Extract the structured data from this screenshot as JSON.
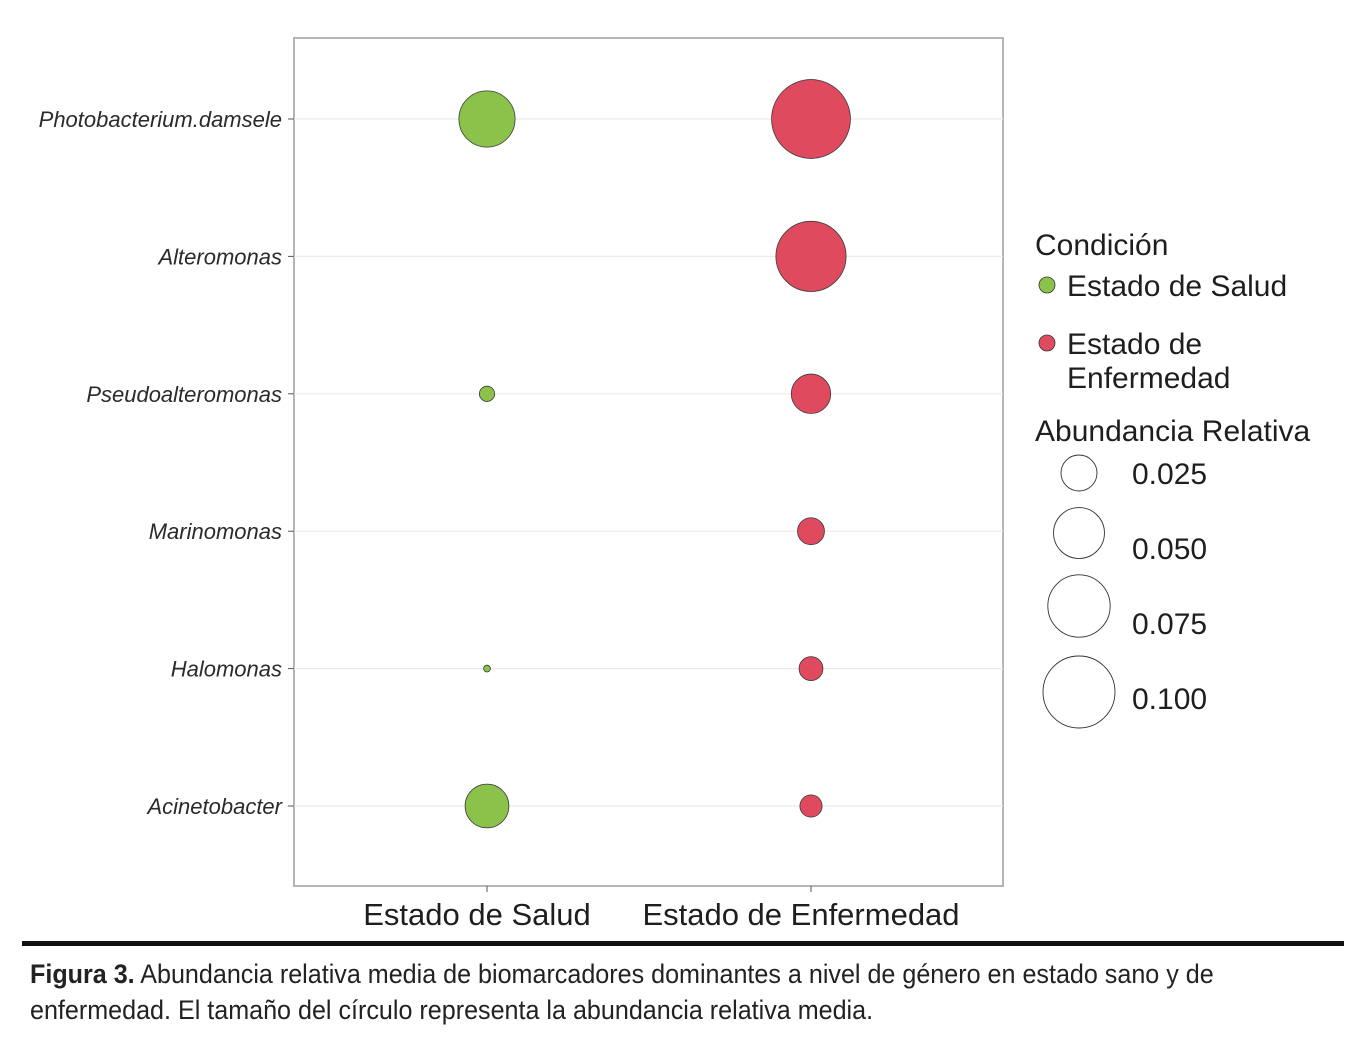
{
  "chart_data": {
    "type": "scatter",
    "categories_y": [
      "Photobacterium.damsele",
      "Alteromonas",
      "Pseudoalteromonas",
      "Marinomonas",
      "Halomonas",
      "Acinetobacter"
    ],
    "categories_x": [
      "Estado de Salud",
      "Estado de Enfermedad"
    ],
    "series": [
      {
        "name": "Estado de Salud",
        "color": "#8bc34a",
        "values": [
          0.061,
          0,
          0.0045,
          0,
          0.0009,
          0.037
        ]
      },
      {
        "name": "Estado de Enfermedad",
        "color": "#e04a5f",
        "values": [
          0.12,
          0.095,
          0.03,
          0.014,
          0.011,
          0.0095
        ]
      }
    ],
    "size_legend": {
      "title": "Abundancia Relativa",
      "breaks": [
        0.025,
        0.05,
        0.075,
        0.1
      ],
      "labels": [
        "0.025",
        "0.050",
        "0.075",
        "0.100"
      ]
    },
    "color_legend": {
      "title": "Condición",
      "labels": [
        "Estado de Salud",
        "Estado de",
        "Enfermedad"
      ]
    },
    "grid": true,
    "legend_position": "right"
  },
  "caption": {
    "label": "Figura 3.",
    "line1": " Abundancia relativa media de biomarcadores dominantes a nivel de género en estado sano y de",
    "line2": "enfermedad. El tamaño del círculo representa la abundancia relativa media."
  }
}
